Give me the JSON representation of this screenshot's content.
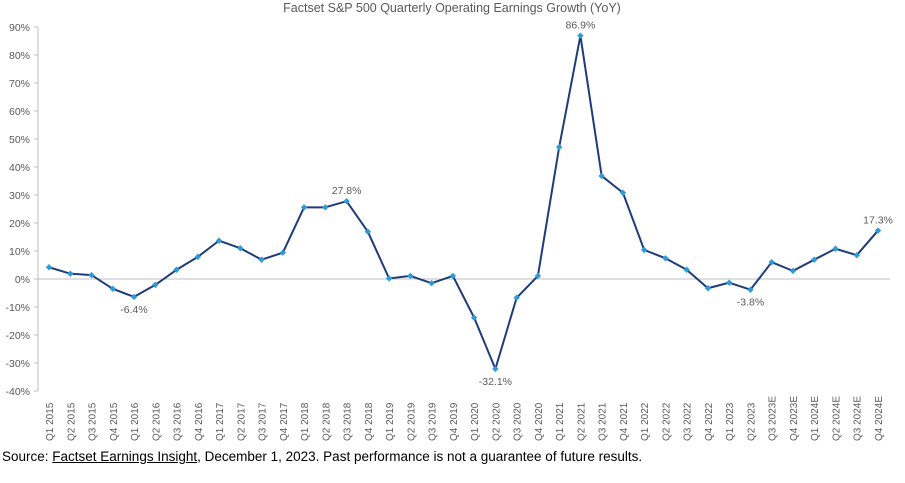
{
  "chart_data": {
    "type": "line",
    "title": "Factset S&P 500 Quarterly Operating Earnings Growth (YoY)",
    "xlabel": "",
    "ylabel": "",
    "ylim": [
      -40,
      90
    ],
    "yticks": [
      90,
      80,
      70,
      60,
      50,
      40,
      30,
      20,
      10,
      0,
      -10,
      -20,
      -30,
      -40
    ],
    "ytick_format": "percent",
    "grid": false,
    "line_color": "#1f3b7a",
    "marker_color": "#2e9bd6",
    "categories": [
      "Q1 2015",
      "Q2 2015",
      "Q3 2015",
      "Q4 2015",
      "Q1 2016",
      "Q2 2016",
      "Q3 2016",
      "Q4 2016",
      "Q1 2017",
      "Q2 2017",
      "Q3 2017",
      "Q4 2017",
      "Q1 2018",
      "Q2 2018",
      "Q3 2018",
      "Q4 2018",
      "Q1 2019",
      "Q2 2019",
      "Q3 2019",
      "Q4 2019",
      "Q1 2020",
      "Q2 2020",
      "Q3 2020",
      "Q4 2020",
      "Q1 2021",
      "Q2 2021",
      "Q3 2021",
      "Q4 2021",
      "Q1 2022",
      "Q2 2022",
      "Q3 2022",
      "Q4 2022",
      "Q1 2023",
      "Q2 2023",
      "Q3 2023E",
      "Q4 2023E",
      "Q1 2024E",
      "Q2 2024E",
      "Q3 2024E",
      "Q4 2024E"
    ],
    "values": [
      4.2,
      1.9,
      1.4,
      -3.5,
      -6.4,
      -2.1,
      3.3,
      7.9,
      13.7,
      11.0,
      6.9,
      9.4,
      25.6,
      25.6,
      27.8,
      16.9,
      0.2,
      1.1,
      -1.5,
      1.1,
      -13.8,
      -32.1,
      -6.7,
      1.1,
      47.1,
      86.9,
      36.8,
      30.8,
      10.4,
      7.4,
      3.3,
      -3.3,
      -1.3,
      -3.8,
      6.0,
      2.9,
      6.9,
      10.8,
      8.5,
      17.3
    ],
    "data_labels": [
      {
        "category": "Q1 2016",
        "text": "-6.4%",
        "position": "below"
      },
      {
        "category": "Q3 2018",
        "text": "27.8%",
        "position": "above"
      },
      {
        "category": "Q2 2020",
        "text": "-32.1%",
        "position": "below"
      },
      {
        "category": "Q2 2021",
        "text": "86.9%",
        "position": "above"
      },
      {
        "category": "Q2 2023",
        "text": "-3.8%",
        "position": "below"
      },
      {
        "category": "Q4 2024E",
        "text": "17.3%",
        "position": "above"
      }
    ]
  },
  "source": {
    "prefix": "Source: ",
    "link": "Factset Earnings Insight",
    "suffix": ", December 1, 2023. Past performance is not a guarantee of future results."
  }
}
